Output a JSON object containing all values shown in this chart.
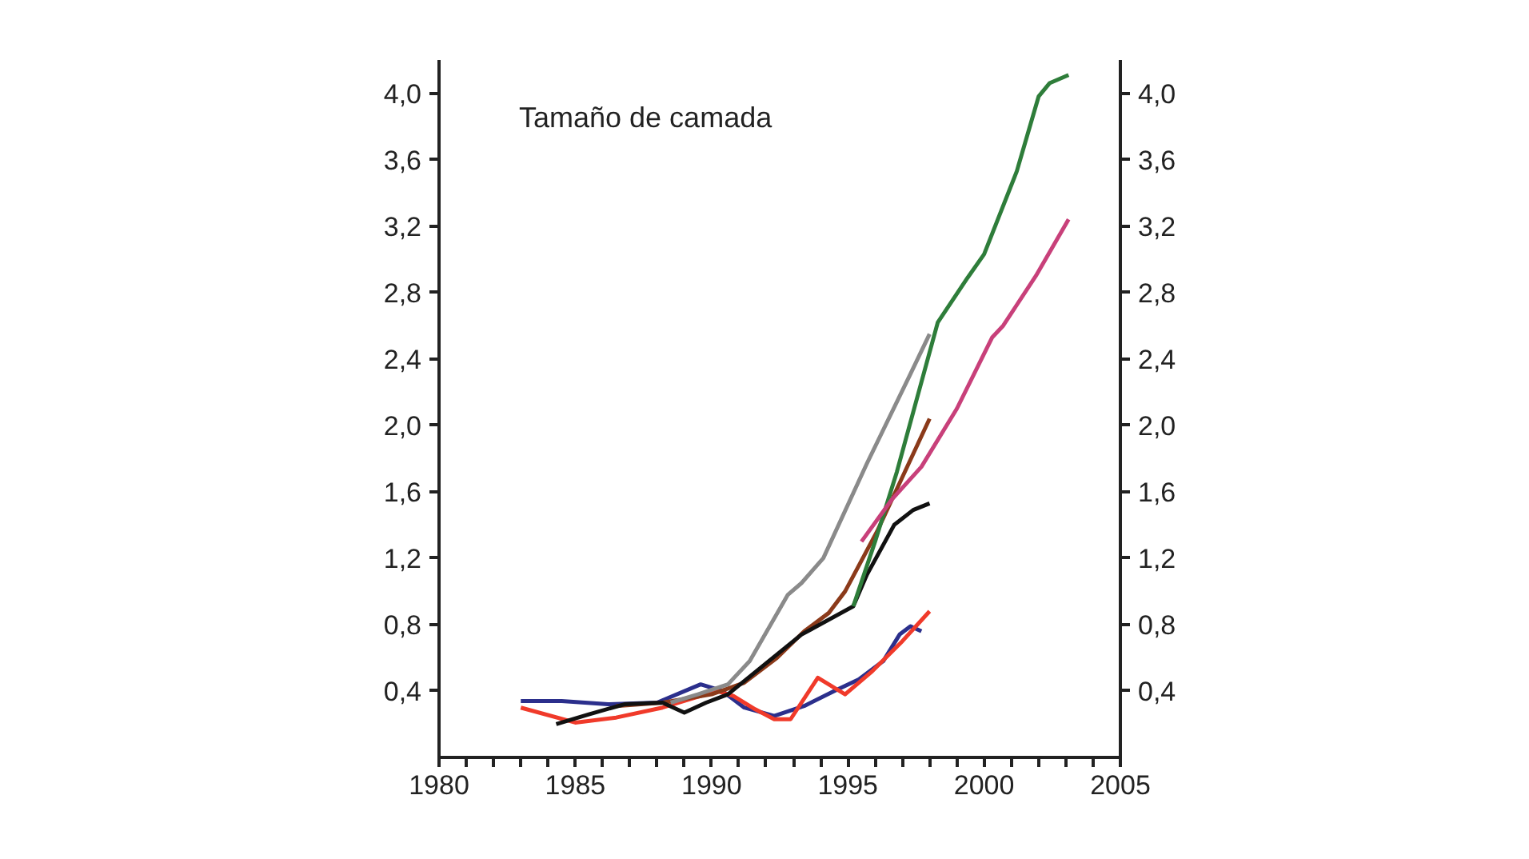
{
  "chart_data": {
    "type": "line",
    "title": "Tamaño de camada",
    "xlim": [
      1980,
      2005
    ],
    "xticks": [
      1980,
      {
        "value": 1981,
        "label": null
      },
      {
        "value": 1982,
        "label": null
      },
      {
        "value": 1983,
        "label": null
      },
      {
        "value": 1984,
        "label": null
      },
      1985,
      {
        "value": 1986,
        "label": null
      },
      {
        "value": 1987,
        "label": null
      },
      {
        "value": 1988,
        "label": null
      },
      {
        "value": 1989,
        "label": null
      },
      1990,
      {
        "value": 1991,
        "label": null
      },
      {
        "value": 1992,
        "label": null
      },
      {
        "value": 1993,
        "label": null
      },
      {
        "value": 1994,
        "label": null
      },
      1995,
      {
        "value": 1996,
        "label": null
      },
      {
        "value": 1997,
        "label": null
      },
      {
        "value": 1998,
        "label": null
      },
      {
        "value": 1999,
        "label": null
      },
      2000,
      {
        "value": 2001,
        "label": null
      },
      {
        "value": 2002,
        "label": null
      },
      {
        "value": 2003,
        "label": null
      },
      {
        "value": 2004,
        "label": null
      },
      2005
    ],
    "ylim": [
      0,
      4.2
    ],
    "yticks": [
      {
        "value": 0.4,
        "label": "0,4"
      },
      {
        "value": 0.8,
        "label": "0,8"
      },
      {
        "value": 1.2,
        "label": "1,2"
      },
      {
        "value": 1.6,
        "label": "1,6"
      },
      {
        "value": 2.0,
        "label": "2,0"
      },
      {
        "value": 2.4,
        "label": "2,4"
      },
      {
        "value": 2.8,
        "label": "2,8"
      },
      {
        "value": 3.2,
        "label": "3,2"
      },
      {
        "value": 3.6,
        "label": "3,6"
      },
      {
        "value": 4.0,
        "label": "4,0"
      }
    ],
    "y2lim": [
      0,
      4.2
    ],
    "y2ticks": [
      {
        "value": 0.4,
        "label": "0,4"
      },
      {
        "value": 0.8,
        "label": "0,8"
      },
      {
        "value": 1.2,
        "label": "1,2"
      },
      {
        "value": 1.6,
        "label": "1,6"
      },
      {
        "value": 2.0,
        "label": "2,0"
      },
      {
        "value": 2.4,
        "label": "2,4"
      },
      {
        "value": 2.8,
        "label": "2,8"
      },
      {
        "value": 3.2,
        "label": "3,2"
      },
      {
        "value": 3.6,
        "label": "3,6"
      },
      {
        "value": 4.0,
        "label": "4,0"
      }
    ],
    "grid": false,
    "line_style": "solid",
    "series": [
      {
        "color": "#2b2f8c",
        "x": [
          1983.0,
          1984.5,
          1986.2,
          1988.0,
          1989.6,
          1990.4,
          1991.2,
          1992.3,
          1993.4,
          1994.5,
          1995.4,
          1996.3,
          1996.9,
          1997.3,
          1997.7
        ],
        "values": [
          0.34,
          0.34,
          0.32,
          0.33,
          0.44,
          0.4,
          0.3,
          0.25,
          0.31,
          0.4,
          0.47,
          0.58,
          0.74,
          0.79,
          0.76
        ]
      },
      {
        "color": "#f03a2a",
        "x": [
          1983.0,
          1985.0,
          1986.5,
          1988.2,
          1990.2,
          1990.8,
          1991.6,
          1992.3,
          1992.9,
          1993.9,
          1994.9,
          1995.9,
          1997.0,
          1998.0
        ],
        "values": [
          0.3,
          0.21,
          0.24,
          0.3,
          0.4,
          0.37,
          0.29,
          0.23,
          0.23,
          0.48,
          0.38,
          0.52,
          0.7,
          0.88
        ]
      },
      {
        "color": "#8b3a1a",
        "x": [
          1986.5,
          1988.2,
          1990.0,
          1991.2,
          1992.4,
          1993.4,
          1994.3,
          1994.9,
          1996.1,
          1998.0
        ],
        "values": [
          0.31,
          0.33,
          0.38,
          0.45,
          0.6,
          0.76,
          0.87,
          1.0,
          1.37,
          2.04
        ]
      },
      {
        "color": "#8a8a8a",
        "x": [
          1988.5,
          1989.5,
          1990.6,
          1991.4,
          1992.1,
          1992.8,
          1993.3,
          1994.1,
          1995.7,
          1997.3,
          1998.0
        ],
        "values": [
          0.33,
          0.38,
          0.44,
          0.58,
          0.78,
          0.98,
          1.05,
          1.2,
          1.77,
          2.31,
          2.55
        ]
      },
      {
        "color": "#111111",
        "x": [
          1984.3,
          1985.5,
          1986.8,
          1988.2,
          1989.0,
          1989.8,
          1990.6,
          1991.8,
          1993.3,
          1995.2,
          1995.7,
          1996.7,
          1997.4,
          1998.0
        ],
        "values": [
          0.2,
          0.26,
          0.32,
          0.33,
          0.27,
          0.33,
          0.38,
          0.54,
          0.74,
          0.91,
          1.1,
          1.4,
          1.49,
          1.53
        ]
      },
      {
        "color": "#2e7d3a",
        "x": [
          1995.2,
          1996.0,
          1996.8,
          1998.3,
          1999.4,
          2000.0,
          2001.2,
          2002.0,
          2002.4,
          2003.1
        ],
        "values": [
          0.91,
          1.3,
          1.72,
          2.62,
          2.89,
          3.03,
          3.53,
          3.98,
          4.06,
          4.11
        ]
      },
      {
        "color": "#c8407a",
        "x": [
          1995.5,
          1996.6,
          1997.7,
          1999.0,
          2000.3,
          2000.7,
          2001.9,
          2003.1
        ],
        "values": [
          1.3,
          1.55,
          1.75,
          2.1,
          2.53,
          2.6,
          2.9,
          3.24
        ]
      }
    ]
  }
}
